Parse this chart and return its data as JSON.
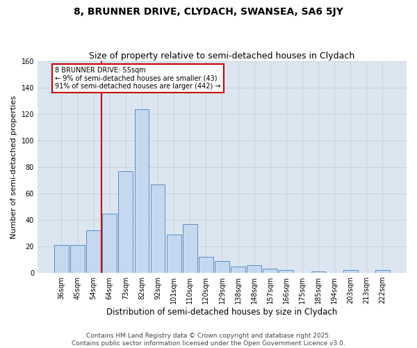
{
  "title1": "8, BRUNNER DRIVE, CLYDACH, SWANSEA, SA6 5JY",
  "title2": "Size of property relative to semi-detached houses in Clydach",
  "xlabel": "Distribution of semi-detached houses by size in Clydach",
  "ylabel": "Number of semi-detached properties",
  "categories": [
    "36sqm",
    "45sqm",
    "54sqm",
    "64sqm",
    "73sqm",
    "82sqm",
    "92sqm",
    "101sqm",
    "110sqm",
    "120sqm",
    "129sqm",
    "138sqm",
    "148sqm",
    "157sqm",
    "166sqm",
    "175sqm",
    "185sqm",
    "194sqm",
    "203sqm",
    "213sqm",
    "222sqm"
  ],
  "values": [
    21,
    21,
    32,
    45,
    77,
    124,
    67,
    29,
    37,
    12,
    9,
    5,
    6,
    3,
    2,
    0,
    1,
    0,
    2,
    0,
    2
  ],
  "bar_color": "#c5d8ef",
  "bar_edge_color": "#5b8ec4",
  "vline_color": "#cc0000",
  "annotation_text": "8 BRUNNER DRIVE: 55sqm\n← 9% of semi-detached houses are smaller (43)\n91% of semi-detached houses are larger (442) →",
  "annotation_box_color": "#cc0000",
  "ylim": [
    0,
    160
  ],
  "yticks": [
    0,
    20,
    40,
    60,
    80,
    100,
    120,
    140,
    160
  ],
  "grid_color": "#c8d4e3",
  "bg_color": "#dce6f0",
  "fig_bg_color": "#ffffff",
  "footer": "Contains HM Land Registry data © Crown copyright and database right 2025.\nContains public sector information licensed under the Open Government Licence v3.0.",
  "title1_fontsize": 10,
  "title2_fontsize": 9,
  "xlabel_fontsize": 8.5,
  "ylabel_fontsize": 8,
  "tick_fontsize": 7,
  "footer_fontsize": 6.5,
  "ann_fontsize": 7
}
